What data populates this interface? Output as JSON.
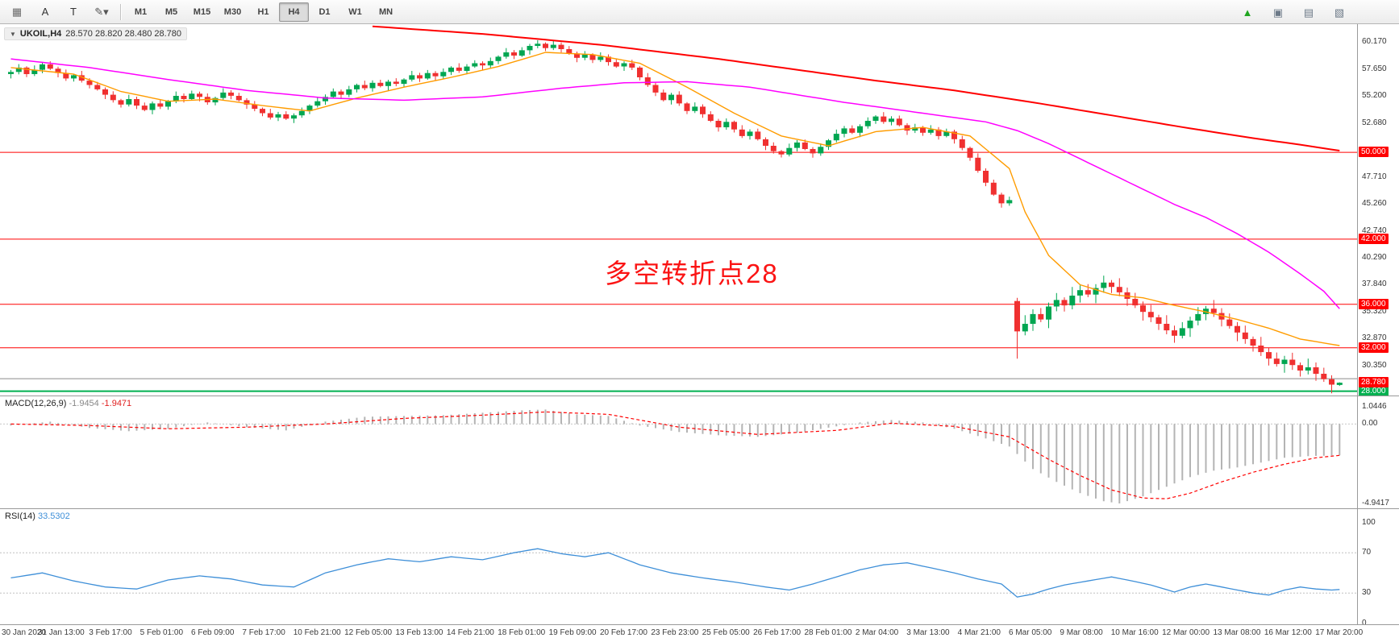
{
  "toolbar": {
    "left_icons": [
      {
        "name": "crosshair-grid-icon",
        "glyph": "▦",
        "color": "#6b6b6b"
      },
      {
        "name": "text-tool-icon",
        "glyph": "A",
        "color": "#333333"
      },
      {
        "name": "text-label-tool-icon",
        "glyph": "T",
        "color": "#333333"
      },
      {
        "name": "draw-tools-icon",
        "glyph": "✎▾",
        "color": "#555555"
      }
    ],
    "timeframes": [
      "M1",
      "M5",
      "M15",
      "M30",
      "H1",
      "H4",
      "D1",
      "W1",
      "MN"
    ],
    "active_timeframe": "H4",
    "right_icons": [
      {
        "name": "new-order-icon",
        "glyph": "▲",
        "color": "#1fa51f"
      },
      {
        "name": "chart-window-icon",
        "glyph": "▣",
        "color": "#6d7a88"
      },
      {
        "name": "tile-windows-icon",
        "glyph": "▤",
        "color": "#6d7a88"
      },
      {
        "name": "cascade-windows-icon",
        "glyph": "▧",
        "color": "#6d7a88"
      }
    ]
  },
  "main_chart": {
    "symbol": "UKOIL,H4",
    "ohlc": "28.570 28.820 28.480 28.780"
  },
  "chart_data": {
    "type": "candlestick",
    "symbol": "UKOIL",
    "timeframe": "H4",
    "current_bar": {
      "open": 28.57,
      "high": 28.82,
      "low": 28.48,
      "close": 28.78
    },
    "annotation": {
      "text": "多空转折点28",
      "color": "#fb1414"
    },
    "colors": {
      "up": "#00a651",
      "down": "#f03030"
    },
    "price_axis": {
      "range": [
        27.6,
        61.8
      ],
      "ticks": [
        "60.170",
        "57.650",
        "55.200",
        "52.680",
        "47.710",
        "45.260",
        "42.740",
        "40.290",
        "37.840",
        "35.320",
        "32.870",
        "30.350"
      ]
    },
    "levels": [
      {
        "value": 50.0,
        "label": "50.000",
        "color": "#ff0000",
        "width": 1
      },
      {
        "value": 42.0,
        "label": "42.000",
        "color": "#ff0000",
        "width": 1
      },
      {
        "value": 36.0,
        "label": "36.000",
        "color": "#ff0000",
        "width": 1
      },
      {
        "value": 32.0,
        "label": "32.000",
        "color": "#ff0000",
        "width": 1
      },
      {
        "value": 29.15,
        "label": "",
        "color": "#8a8a8a",
        "width": 1
      },
      {
        "value": 28.0,
        "label": "28.000",
        "color": "#00b050",
        "width": 2
      }
    ],
    "current_price": {
      "value": 28.78,
      "label": "28.780",
      "color": "#ff0000"
    },
    "first_open": 57.2,
    "wick_pattern": [
      0.18,
      0.32,
      0.12,
      0.4,
      0.22,
      0.28
    ],
    "gap_index": 128,
    "wick_scale_after_gap": 2.0,
    "candle_overrides": {
      "128": {
        "o": 36.3,
        "h": 36.6,
        "l": 31.0,
        "c": 33.5
      },
      "169": {
        "o": 28.57,
        "h": 28.82,
        "l": 28.48,
        "c": 28.78
      }
    },
    "closes": [
      57.4,
      57.8,
      57.2,
      57.6,
      58.1,
      57.7,
      57.3,
      56.8,
      57.1,
      56.6,
      56.2,
      55.8,
      55.3,
      54.8,
      54.4,
      54.9,
      54.3,
      53.9,
      54.5,
      54.2,
      54.7,
      55.2,
      54.9,
      55.4,
      55.1,
      54.6,
      55.0,
      55.5,
      55.2,
      54.8,
      54.4,
      54.0,
      53.6,
      53.2,
      53.5,
      53.1,
      53.4,
      53.8,
      54.3,
      54.7,
      55.1,
      55.6,
      55.3,
      55.8,
      56.2,
      55.9,
      56.4,
      56.1,
      56.5,
      56.3,
      56.7,
      57.1,
      56.8,
      57.3,
      57.0,
      57.4,
      57.8,
      57.5,
      57.9,
      58.2,
      58.0,
      58.4,
      58.8,
      59.2,
      58.9,
      59.4,
      59.8,
      60.0,
      59.6,
      59.9,
      59.5,
      59.1,
      58.7,
      59.0,
      58.5,
      58.8,
      58.3,
      57.9,
      58.2,
      57.8,
      56.9,
      56.2,
      55.5,
      54.8,
      55.3,
      54.5,
      53.8,
      54.2,
      53.5,
      52.9,
      52.3,
      52.8,
      52.1,
      51.5,
      51.9,
      51.2,
      50.6,
      50.1,
      49.8,
      50.4,
      50.9,
      50.3,
      49.9,
      50.5,
      51.1,
      51.7,
      52.2,
      51.8,
      52.4,
      52.9,
      53.3,
      52.8,
      53.1,
      52.5,
      52.0,
      52.3,
      51.8,
      52.1,
      51.5,
      51.9,
      51.2,
      50.4,
      49.5,
      48.3,
      47.2,
      46.1,
      45.3,
      45.6,
      33.5,
      34.2,
      35.1,
      34.6,
      35.8,
      36.4,
      35.9,
      36.8,
      37.3,
      36.9,
      37.5,
      38.0,
      37.6,
      37.1,
      36.5,
      35.9,
      35.3,
      34.8,
      34.2,
      33.6,
      33.1,
      33.8,
      34.5,
      35.1,
      35.6,
      35.2,
      34.6,
      34.0,
      33.4,
      32.8,
      32.2,
      31.6,
      31.0,
      30.5,
      30.9,
      30.4,
      29.9,
      30.2,
      29.6,
      29.1,
      28.6,
      28.78
    ],
    "ma": [
      {
        "name": "ma-fast",
        "color": "#ff9c00",
        "width": 1.4,
        "points": [
          [
            0,
            57.8
          ],
          [
            8,
            57.2
          ],
          [
            14,
            55.6
          ],
          [
            20,
            54.7
          ],
          [
            26,
            54.9
          ],
          [
            32,
            54.3
          ],
          [
            38,
            53.8
          ],
          [
            44,
            55.0
          ],
          [
            50,
            56.0
          ],
          [
            56,
            56.9
          ],
          [
            62,
            57.9
          ],
          [
            68,
            59.2
          ],
          [
            74,
            59.0
          ],
          [
            80,
            58.2
          ],
          [
            86,
            56.0
          ],
          [
            92,
            53.6
          ],
          [
            98,
            51.5
          ],
          [
            104,
            50.6
          ],
          [
            110,
            51.9
          ],
          [
            116,
            52.3
          ],
          [
            122,
            51.5
          ],
          [
            127,
            48.5
          ],
          [
            129,
            44.5
          ],
          [
            132,
            40.5
          ],
          [
            136,
            37.8
          ],
          [
            140,
            36.9
          ],
          [
            144,
            36.6
          ],
          [
            148,
            35.9
          ],
          [
            152,
            35.3
          ],
          [
            156,
            34.6
          ],
          [
            160,
            33.8
          ],
          [
            164,
            32.8
          ],
          [
            169,
            32.2
          ]
        ]
      },
      {
        "name": "ma-mid",
        "color": "#ff00ff",
        "width": 1.5,
        "points": [
          [
            0,
            58.6
          ],
          [
            10,
            57.8
          ],
          [
            20,
            56.7
          ],
          [
            30,
            55.7
          ],
          [
            40,
            55.0
          ],
          [
            50,
            54.8
          ],
          [
            60,
            55.1
          ],
          [
            70,
            55.9
          ],
          [
            78,
            56.4
          ],
          [
            86,
            56.5
          ],
          [
            94,
            56.0
          ],
          [
            100,
            55.3
          ],
          [
            106,
            54.6
          ],
          [
            112,
            54.0
          ],
          [
            118,
            53.4
          ],
          [
            124,
            52.8
          ],
          [
            128,
            52.0
          ],
          [
            132,
            50.8
          ],
          [
            136,
            49.4
          ],
          [
            140,
            48.0
          ],
          [
            144,
            46.6
          ],
          [
            148,
            45.2
          ],
          [
            152,
            44.0
          ],
          [
            156,
            42.5
          ],
          [
            160,
            40.8
          ],
          [
            164,
            38.8
          ],
          [
            167,
            37.2
          ],
          [
            169,
            35.6
          ]
        ]
      },
      {
        "name": "ma-slow",
        "color": "#ff0000",
        "width": 2,
        "points": [
          [
            46,
            61.6
          ],
          [
            60,
            60.9
          ],
          [
            75,
            59.9
          ],
          [
            90,
            58.6
          ],
          [
            100,
            57.6
          ],
          [
            110,
            56.6
          ],
          [
            120,
            55.7
          ],
          [
            130,
            54.6
          ],
          [
            140,
            53.4
          ],
          [
            150,
            52.2
          ],
          [
            158,
            51.3
          ],
          [
            164,
            50.7
          ],
          [
            169,
            50.15
          ]
        ]
      }
    ],
    "macd": {
      "label": "MACD(12,26,9)",
      "value_str": "-1.9454",
      "signal_str": "-1.9471",
      "range": [
        -5.24,
        1.72
      ],
      "ticks": [
        "1.0446",
        "0.00",
        "-4.9417"
      ],
      "hist_color": "#b4b4b4",
      "signal_color": "#ff0000",
      "hist_points": [
        [
          0,
          -0.1
        ],
        [
          5,
          0.15
        ],
        [
          10,
          -0.25
        ],
        [
          15,
          -0.45
        ],
        [
          20,
          -0.3
        ],
        [
          25,
          0.1
        ],
        [
          30,
          -0.2
        ],
        [
          35,
          -0.4
        ],
        [
          40,
          0.15
        ],
        [
          45,
          0.45
        ],
        [
          50,
          0.5
        ],
        [
          55,
          0.55
        ],
        [
          60,
          0.7
        ],
        [
          65,
          0.85
        ],
        [
          68,
          0.9
        ],
        [
          72,
          0.6
        ],
        [
          76,
          0.5
        ],
        [
          80,
          -0.1
        ],
        [
          85,
          -0.5
        ],
        [
          90,
          -0.7
        ],
        [
          95,
          -0.8
        ],
        [
          100,
          -0.55
        ],
        [
          105,
          -0.15
        ],
        [
          108,
          0.1
        ],
        [
          112,
          0.25
        ],
        [
          116,
          0.1
        ],
        [
          120,
          -0.3
        ],
        [
          124,
          -0.9
        ],
        [
          127,
          -1.4
        ],
        [
          130,
          -2.8
        ],
        [
          133,
          -3.6
        ],
        [
          136,
          -4.3
        ],
        [
          139,
          -4.8
        ],
        [
          141,
          -4.94
        ],
        [
          144,
          -4.5
        ],
        [
          147,
          -3.9
        ],
        [
          150,
          -3.3
        ],
        [
          153,
          -2.9
        ],
        [
          156,
          -2.7
        ],
        [
          159,
          -2.4
        ],
        [
          162,
          -2.1
        ],
        [
          165,
          -2.0
        ],
        [
          169,
          -1.95
        ]
      ],
      "signal_points": [
        [
          0,
          0
        ],
        [
          10,
          -0.1
        ],
        [
          20,
          -0.3
        ],
        [
          30,
          -0.2
        ],
        [
          40,
          0
        ],
        [
          50,
          0.35
        ],
        [
          60,
          0.55
        ],
        [
          68,
          0.75
        ],
        [
          76,
          0.6
        ],
        [
          85,
          -0.2
        ],
        [
          95,
          -0.65
        ],
        [
          105,
          -0.4
        ],
        [
          112,
          0.05
        ],
        [
          120,
          -0.15
        ],
        [
          127,
          -0.8
        ],
        [
          132,
          -2.2
        ],
        [
          136,
          -3.2
        ],
        [
          140,
          -4.1
        ],
        [
          144,
          -4.6
        ],
        [
          147,
          -4.65
        ],
        [
          150,
          -4.3
        ],
        [
          154,
          -3.6
        ],
        [
          158,
          -3.0
        ],
        [
          162,
          -2.5
        ],
        [
          166,
          -2.1
        ],
        [
          169,
          -1.95
        ]
      ]
    },
    "rsi": {
      "label": "RSI(14)",
      "value_str": "33.5302",
      "range": [
        -1,
        113.3
      ],
      "ticks": [
        "100",
        "70",
        "30",
        "0"
      ],
      "level_lines": [
        70,
        30
      ],
      "color": "#3e8fd8",
      "points": [
        [
          0,
          45
        ],
        [
          4,
          50
        ],
        [
          8,
          42
        ],
        [
          12,
          36
        ],
        [
          16,
          34
        ],
        [
          20,
          43
        ],
        [
          24,
          47
        ],
        [
          28,
          44
        ],
        [
          32,
          38
        ],
        [
          36,
          36
        ],
        [
          40,
          50
        ],
        [
          44,
          58
        ],
        [
          48,
          64
        ],
        [
          52,
          61
        ],
        [
          56,
          66
        ],
        [
          60,
          63
        ],
        [
          64,
          70
        ],
        [
          67,
          74
        ],
        [
          70,
          69
        ],
        [
          73,
          66
        ],
        [
          76,
          70
        ],
        [
          80,
          58
        ],
        [
          84,
          50
        ],
        [
          88,
          45
        ],
        [
          92,
          41
        ],
        [
          96,
          36
        ],
        [
          99,
          33
        ],
        [
          102,
          39
        ],
        [
          105,
          46
        ],
        [
          108,
          53
        ],
        [
          111,
          58
        ],
        [
          114,
          60
        ],
        [
          117,
          55
        ],
        [
          120,
          50
        ],
        [
          123,
          44
        ],
        [
          126,
          39
        ],
        [
          128,
          26
        ],
        [
          130,
          29
        ],
        [
          132,
          34
        ],
        [
          134,
          38
        ],
        [
          137,
          42
        ],
        [
          140,
          46
        ],
        [
          142,
          43
        ],
        [
          145,
          38
        ],
        [
          148,
          31
        ],
        [
          150,
          36
        ],
        [
          152,
          39
        ],
        [
          154,
          36
        ],
        [
          156,
          33
        ],
        [
          158,
          30
        ],
        [
          160,
          28
        ],
        [
          162,
          33
        ],
        [
          164,
          36
        ],
        [
          166,
          34
        ],
        [
          168,
          33
        ],
        [
          169,
          33.5
        ]
      ]
    },
    "time_labels": [
      "30 Jan 2020",
      "31 Jan 13:00",
      "3 Feb 17:00",
      "5 Feb 01:00",
      "6 Feb 09:00",
      "7 Feb 17:00",
      "10 Feb 21:00",
      "12 Feb 05:00",
      "13 Feb 13:00",
      "14 Feb 21:00",
      "18 Feb 01:00",
      "19 Feb 09:00",
      "20 Feb 17:00",
      "23 Feb 23:00",
      "25 Feb 05:00",
      "26 Feb 17:00",
      "28 Feb 01:00",
      "2 Mar 04:00",
      "3 Mar 13:00",
      "4 Mar 21:00",
      "6 Mar 05:00",
      "9 Mar 08:00",
      "10 Mar 16:00",
      "12 Mar 00:00",
      "13 Mar 08:00",
      "16 Mar 12:00",
      "17 Mar 20:00"
    ]
  }
}
